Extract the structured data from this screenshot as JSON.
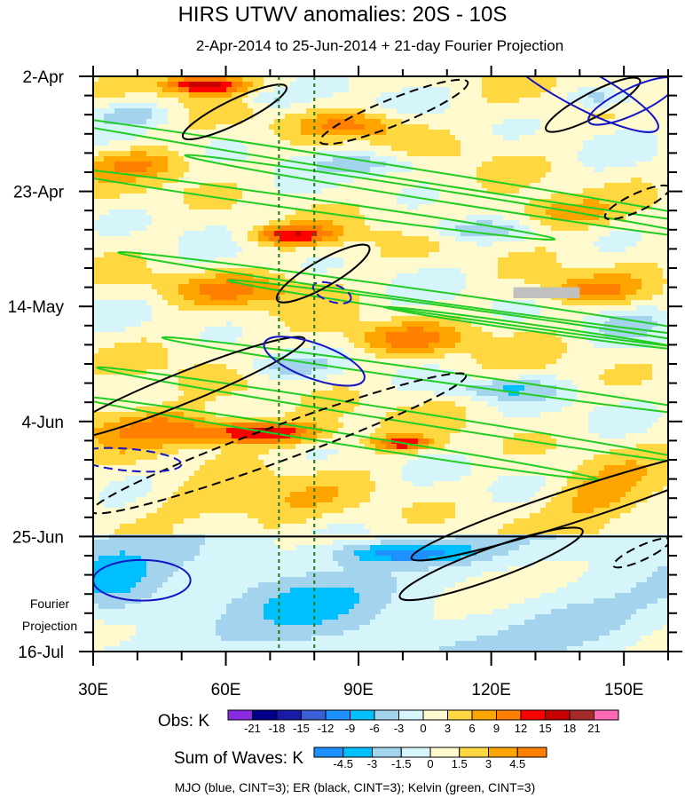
{
  "chart_data": {
    "type": "heatmap",
    "title": "HIRS UTWV anomalies: 20S - 10S",
    "subtitle": "2-Apr-2014 to 25-Jun-2014 + 21-day Fourier Projection",
    "xlabel": "",
    "ylabel": "",
    "x_range": [
      30,
      160
    ],
    "x_ticks": [
      {
        "value": 30,
        "label": "30E"
      },
      {
        "value": 60,
        "label": "60E"
      },
      {
        "value": 90,
        "label": "90E"
      },
      {
        "value": 120,
        "label": "120E"
      },
      {
        "value": 150,
        "label": "150E"
      }
    ],
    "y_range_days": [
      0,
      105
    ],
    "y_ticks": [
      {
        "day": 0,
        "label": "2-Apr"
      },
      {
        "day": 21,
        "label": "23-Apr"
      },
      {
        "day": 42,
        "label": "14-May"
      },
      {
        "day": 63,
        "label": "4-Jun"
      },
      {
        "day": 84,
        "label": "25-Jun"
      },
      {
        "day": 105,
        "label": "16-Jul"
      }
    ],
    "projection_start_day": 84,
    "projection_label_line1": "Fourier",
    "projection_label_line2": "Projection",
    "reference_lines_lon": [
      72,
      80
    ],
    "obs_scale": {
      "label": "Obs: K",
      "levels": [
        "-21",
        "-18",
        "-15",
        "-12",
        "-9",
        "-6",
        "-3",
        "0",
        "3",
        "6",
        "9",
        "12",
        "15",
        "18",
        "21"
      ],
      "colors": [
        "#8a2be2",
        "#00008b",
        "#1a1aa8",
        "#3a5fd8",
        "#1e90ff",
        "#00bfff",
        "#a4d3ee",
        "#d6f5fb",
        "#fffacd",
        "#ffd740",
        "#ffa500",
        "#ff7f00",
        "#ff0000",
        "#c80000",
        "#a52a2a",
        "#ff69b4"
      ]
    },
    "waves_scale": {
      "label": "Sum of Waves: K",
      "levels": [
        "-4.5",
        "-3",
        "-1.5",
        "0",
        "1.5",
        "3",
        "4.5"
      ],
      "colors": [
        "#1e90ff",
        "#00bfff",
        "#a4d3ee",
        "#d6f5fb",
        "#fffacd",
        "#ffd740",
        "#ffa500",
        "#ff7f00"
      ]
    },
    "wave_legend": "MJO (blue, CINT=3); ER (black, CINT=3); Kelvin (green, CINT=3)",
    "series": [
      {
        "name": "MJO",
        "color": "#1515c8",
        "contour_interval": 3
      },
      {
        "name": "ER",
        "color": "#000000",
        "contour_interval": 3
      },
      {
        "name": "Kelvin",
        "color": "#22cc22",
        "contour_interval": 3
      }
    ],
    "anomaly_features": [
      {
        "lon": 55,
        "day": 1.5,
        "lon_w": 9,
        "day_w": 1.6,
        "value": 16
      },
      {
        "lon": 68,
        "day": 65,
        "lon_w": 14,
        "day_w": 2.2,
        "value": 15
      },
      {
        "lon": 45,
        "day": 64,
        "lon_w": 16,
        "day_w": 3.5,
        "value": 8
      },
      {
        "lon": 100,
        "day": 67,
        "lon_w": 7,
        "day_w": 1.2,
        "value": 12
      },
      {
        "lon": 75,
        "day": 29,
        "lon_w": 10,
        "day_w": 1.8,
        "value": 12
      },
      {
        "lon": 90,
        "day": 9,
        "lon_w": 12,
        "day_w": 2.5,
        "value": 8
      },
      {
        "lon": 135,
        "day": 25,
        "lon_w": 12,
        "day_w": 3,
        "value": 8
      },
      {
        "lon": 100,
        "day": 48,
        "lon_w": 14,
        "day_w": 3,
        "value": 8
      },
      {
        "lon": 142,
        "day": 39,
        "lon_w": 10,
        "day_w": 2.5,
        "value": 7
      },
      {
        "lon": 145,
        "day": 77,
        "lon_w": 12,
        "day_w": 5,
        "value": 6
      },
      {
        "lon": 40,
        "day": 16,
        "lon_w": 12,
        "day_w": 2.5,
        "value": 6
      },
      {
        "lon": 60,
        "day": 39,
        "lon_w": 18,
        "day_w": 3,
        "value": 6
      },
      {
        "lon": 60,
        "day": 78,
        "lon_w": 20,
        "day_w": 4,
        "value": 5
      },
      {
        "lon": 145,
        "day": 4,
        "lon_w": 8,
        "day_w": 2,
        "value": -8
      },
      {
        "lon": 122,
        "day": 57,
        "lon_w": 12,
        "day_w": 2,
        "value": -7
      },
      {
        "lon": 115,
        "day": 28,
        "lon_w": 12,
        "day_w": 2,
        "value": -6
      },
      {
        "lon": 95,
        "day": 16,
        "lon_w": 12,
        "day_w": 2,
        "value": -6
      },
      {
        "lon": 40,
        "day": 7,
        "lon_w": 10,
        "day_w": 2,
        "value": -5
      },
      {
        "lon": 72,
        "day": 53,
        "lon_w": 10,
        "day_w": 2,
        "value": -5
      },
      {
        "lon": 100,
        "day": 87,
        "lon_w": 16,
        "day_w": 2,
        "value": -5
      },
      {
        "lon": 70,
        "day": 4,
        "lon_w": 6,
        "day_w": 1.5,
        "value": -5
      },
      {
        "lon": 150,
        "day": 45,
        "lon_w": 10,
        "day_w": 3,
        "value": -4
      },
      {
        "lon": 35,
        "day": 93,
        "lon_w": 10,
        "day_w": 6,
        "value": -2.5
      },
      {
        "lon": 80,
        "day": 96,
        "lon_w": 15,
        "day_w": 6,
        "value": -2
      },
      {
        "lon": 140,
        "day": 100,
        "lon_w": 15,
        "day_w": 5,
        "value": -1.5
      }
    ],
    "missing_data_patch": {
      "lon": [
        125,
        140
      ],
      "day": [
        38.5,
        40.5
      ]
    }
  }
}
